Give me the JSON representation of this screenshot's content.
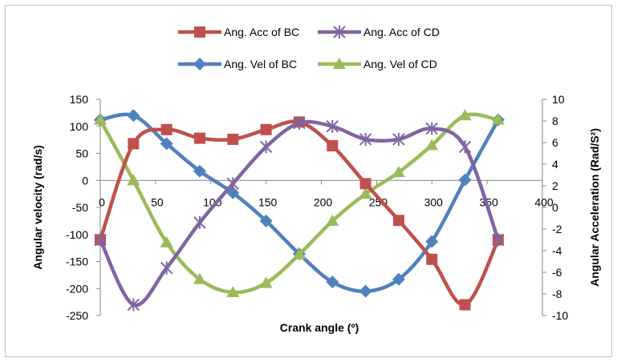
{
  "chart_data": {
    "type": "line",
    "xlabel": "Crank angle (º)",
    "ylabel_left": "Angular velocity (rad/s)",
    "ylabel_right": "Angular Acceleration (Rad/S²)",
    "x_ticks": [
      0,
      50,
      100,
      150,
      200,
      250,
      300,
      350,
      400
    ],
    "xlim": [
      0,
      400
    ],
    "ylim_left": [
      -250,
      150
    ],
    "y_ticks_left": [
      150,
      100,
      50,
      0,
      -50,
      -100,
      -150,
      -200,
      -250
    ],
    "ylim_right": [
      -10,
      10
    ],
    "y_ticks_right": [
      10,
      8,
      6,
      4,
      2,
      0,
      -2,
      -4,
      -6,
      -8,
      -10
    ],
    "grid": false,
    "legend_position": "top",
    "x": [
      0,
      30,
      60,
      90,
      120,
      150,
      180,
      210,
      240,
      270,
      300,
      330,
      360
    ],
    "series": [
      {
        "name": "Ang. Acc of BC",
        "axis": "right",
        "marker": "square",
        "color": "#c0504d",
        "values": [
          -3.0,
          5.9,
          7.2,
          6.4,
          6.3,
          7.2,
          7.9,
          5.7,
          2.2,
          -1.2,
          -4.8,
          -9.0,
          -3.0
        ]
      },
      {
        "name": "Ang. Acc of CD",
        "axis": "right",
        "marker": "star",
        "color": "#8064a2",
        "values": [
          -3.0,
          -9.0,
          -5.6,
          -1.4,
          2.2,
          5.6,
          7.8,
          7.5,
          6.3,
          6.3,
          7.3,
          5.6,
          -3.0
        ]
      },
      {
        "name": "Ang. Vel of BC",
        "axis": "left",
        "marker": "diamond",
        "color": "#4f81bd",
        "values": [
          112,
          120,
          68,
          17,
          -23,
          -75,
          -136,
          -188,
          -205,
          -183,
          -113,
          1,
          112
        ]
      },
      {
        "name": "Ang. Vel of CD",
        "axis": "left",
        "marker": "triangle",
        "color": "#9bbb59",
        "values": [
          112,
          0,
          -115,
          -183,
          -207,
          -190,
          -137,
          -75,
          -25,
          15,
          65,
          120,
          112
        ]
      }
    ]
  }
}
